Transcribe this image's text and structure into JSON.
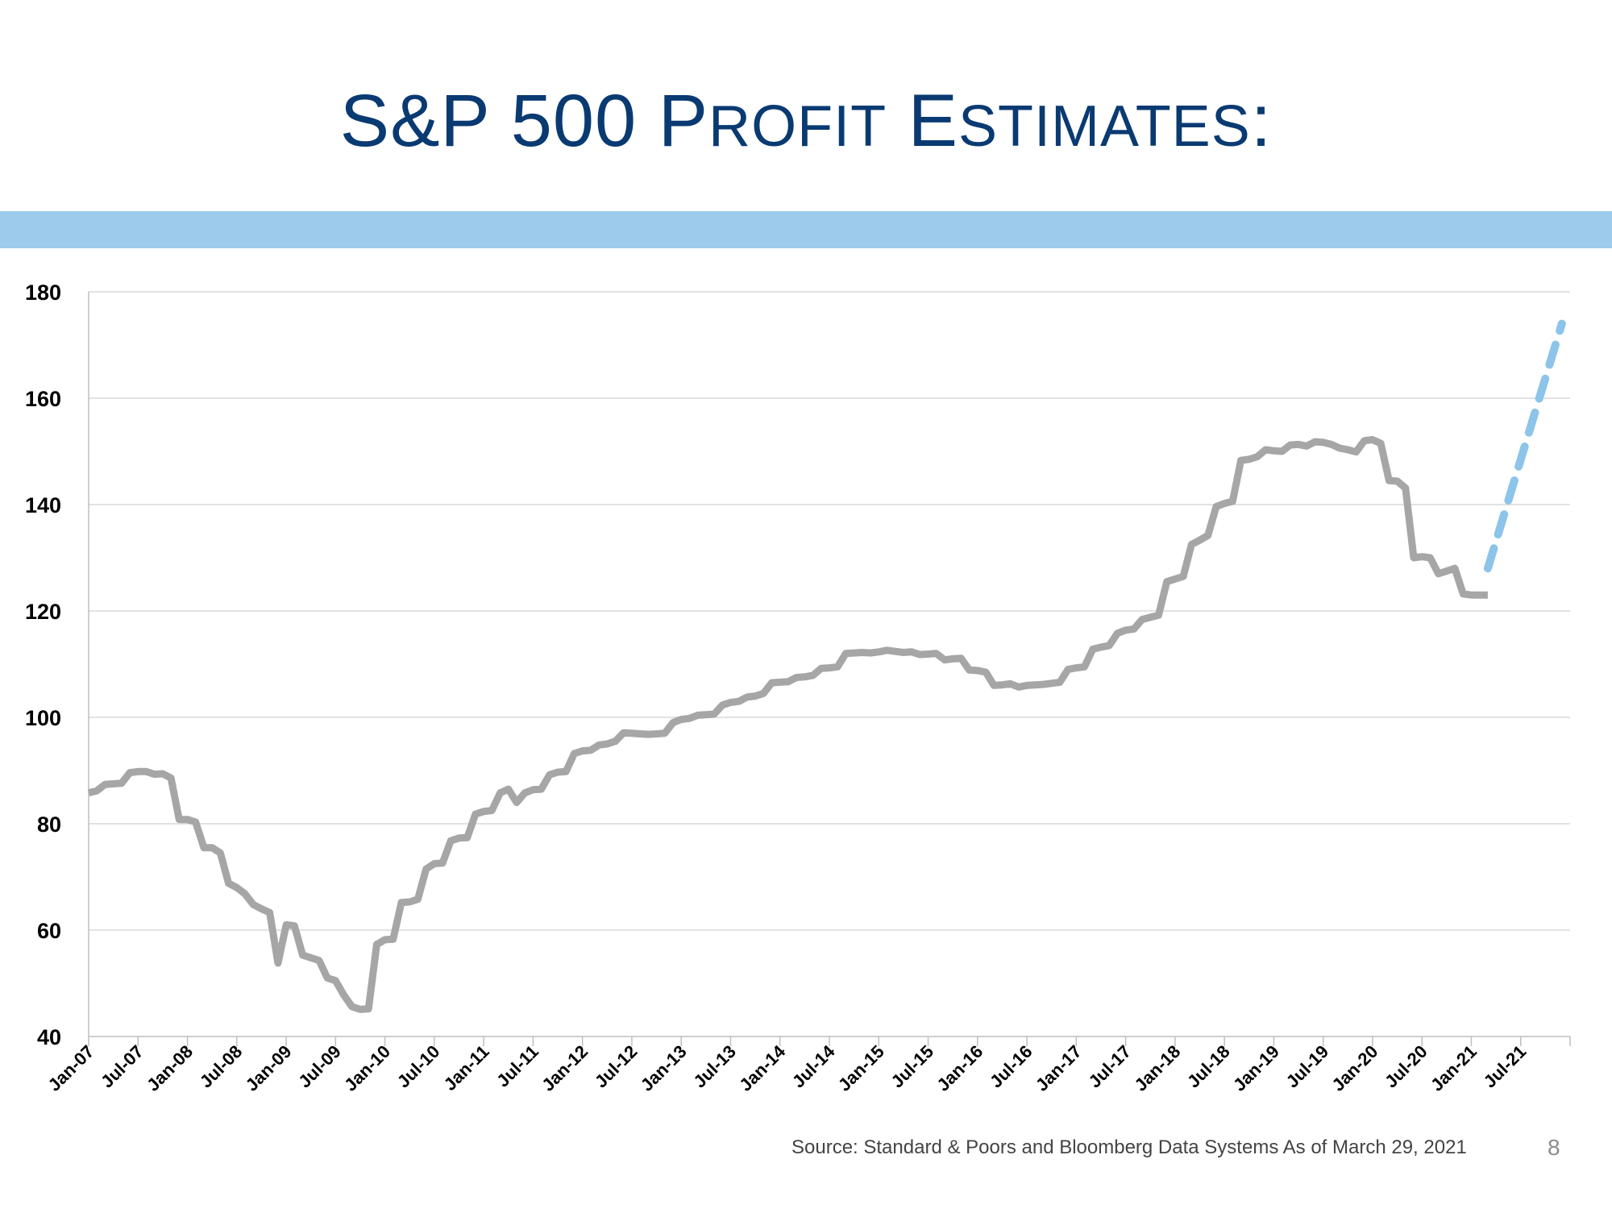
{
  "slide": {
    "title_lead": "S&P 500 P",
    "title_small_1": "ROFIT",
    "title_mid": " E",
    "title_small_2": "STIMATES",
    "title_tail": ":",
    "source": "Source:  Standard & Poors and Bloomberg Data Systems As of March 29, 2021",
    "page_number": "8"
  },
  "colors": {
    "title": "#0a3a72",
    "band": "#9ccbeb",
    "actual_line": "#a6a6a6",
    "estimate_line": "#8cc4ea",
    "grid": "#d9d9d9"
  },
  "chart_data": {
    "type": "line",
    "title": "",
    "xlabel": "",
    "ylabel": "",
    "ylim": [
      40,
      180
    ],
    "yticks": [
      40,
      60,
      80,
      100,
      120,
      140,
      160,
      180
    ],
    "x_range": [
      "Jan-07",
      "Jan-22"
    ],
    "x_tick_labels": [
      "Jan-07",
      "Jul-07",
      "Jan-08",
      "Jul-08",
      "Jan-09",
      "Jul-09",
      "Jan-10",
      "Jul-10",
      "Jan-11",
      "Jul-11",
      "Jan-12",
      "Jul-12",
      "Jan-13",
      "Jul-13",
      "Jan-14",
      "Jul-14",
      "Jan-15",
      "Jul-15",
      "Jan-16",
      "Jul-16",
      "Jan-17",
      "Jul-17",
      "Jan-18",
      "Jul-18",
      "Jan-19",
      "Jul-19",
      "Jan-20",
      "Jul-20",
      "Jan-21",
      "Jul-21"
    ],
    "grid": true,
    "legend": "none",
    "series": [
      {
        "style": "solid",
        "points": [
          [
            "Jan-07",
            85.8
          ],
          [
            "Feb-07",
            86.2
          ],
          [
            "Mar-07",
            87.4
          ],
          [
            "Apr-07",
            87.5
          ],
          [
            "May-07",
            87.6
          ],
          [
            "Jun-07",
            89.6
          ],
          [
            "Jul-07",
            89.8
          ],
          [
            "Aug-07",
            89.8
          ],
          [
            "Sep-07",
            89.3
          ],
          [
            "Oct-07",
            89.4
          ],
          [
            "Nov-07",
            88.6
          ],
          [
            "Dec-07",
            80.8
          ],
          [
            "Jan-08",
            80.8
          ],
          [
            "Feb-08",
            80.3
          ],
          [
            "Mar-08",
            75.5
          ],
          [
            "Apr-08",
            75.5
          ],
          [
            "May-08",
            74.5
          ],
          [
            "Jun-08",
            68.8
          ],
          [
            "Jul-08",
            68.0
          ],
          [
            "Aug-08",
            66.8
          ],
          [
            "Sep-08",
            64.8
          ],
          [
            "Oct-08",
            64.0
          ],
          [
            "Nov-08",
            63.3
          ],
          [
            "Dec-08",
            53.8
          ],
          [
            "Jan-09",
            61.0
          ],
          [
            "Feb-09",
            60.8
          ],
          [
            "Mar-09",
            55.3
          ],
          [
            "Apr-09",
            54.8
          ],
          [
            "May-09",
            54.3
          ],
          [
            "Jun-09",
            51.0
          ],
          [
            "Jul-09",
            50.5
          ],
          [
            "Aug-09",
            47.8
          ],
          [
            "Sep-09",
            45.6
          ],
          [
            "Oct-09",
            45.1
          ],
          [
            "Nov-09",
            45.2
          ],
          [
            "Dec-09",
            57.3
          ],
          [
            "Jan-10",
            58.2
          ],
          [
            "Feb-10",
            58.3
          ],
          [
            "Mar-10",
            65.2
          ],
          [
            "Apr-10",
            65.3
          ],
          [
            "May-10",
            65.8
          ],
          [
            "Jun-10",
            71.5
          ],
          [
            "Jul-10",
            72.5
          ],
          [
            "Aug-10",
            72.6
          ],
          [
            "Sep-10",
            76.8
          ],
          [
            "Oct-10",
            77.3
          ],
          [
            "Nov-10",
            77.4
          ],
          [
            "Dec-10",
            81.8
          ],
          [
            "Jan-11",
            82.3
          ],
          [
            "Feb-11",
            82.5
          ],
          [
            "Mar-11",
            85.8
          ],
          [
            "Apr-11",
            86.5
          ],
          [
            "May-11",
            84.0
          ],
          [
            "Jun-11",
            85.8
          ],
          [
            "Jul-11",
            86.4
          ],
          [
            "Aug-11",
            86.5
          ],
          [
            "Sep-11",
            89.2
          ],
          [
            "Oct-11",
            89.7
          ],
          [
            "Nov-11",
            89.8
          ],
          [
            "Dec-11",
            93.2
          ],
          [
            "Jan-12",
            93.7
          ],
          [
            "Feb-12",
            93.8
          ],
          [
            "Mar-12",
            94.8
          ],
          [
            "Apr-12",
            95.0
          ],
          [
            "May-12",
            95.5
          ],
          [
            "Jun-12",
            97.1
          ],
          [
            "Jul-12",
            97.0
          ],
          [
            "Aug-12",
            96.9
          ],
          [
            "Sep-12",
            96.8
          ],
          [
            "Oct-12",
            96.9
          ],
          [
            "Nov-12",
            97.0
          ],
          [
            "Dec-12",
            99.0
          ],
          [
            "Jan-13",
            99.6
          ],
          [
            "Feb-13",
            99.8
          ],
          [
            "Mar-13",
            100.4
          ],
          [
            "Apr-13",
            100.5
          ],
          [
            "May-13",
            100.6
          ],
          [
            "Jun-13",
            102.3
          ],
          [
            "Jul-13",
            102.8
          ],
          [
            "Aug-13",
            103.0
          ],
          [
            "Sep-13",
            103.8
          ],
          [
            "Oct-13",
            104.0
          ],
          [
            "Nov-13",
            104.5
          ],
          [
            "Dec-13",
            106.5
          ],
          [
            "Jan-14",
            106.6
          ],
          [
            "Feb-14",
            106.7
          ],
          [
            "Mar-14",
            107.5
          ],
          [
            "Apr-14",
            107.6
          ],
          [
            "May-14",
            107.9
          ],
          [
            "Jun-14",
            109.2
          ],
          [
            "Jul-14",
            109.3
          ],
          [
            "Aug-14",
            109.5
          ],
          [
            "Sep-14",
            112.0
          ],
          [
            "Oct-14",
            112.1
          ],
          [
            "Nov-14",
            112.2
          ],
          [
            "Dec-14",
            112.1
          ],
          [
            "Jan-15",
            112.3
          ],
          [
            "Feb-15",
            112.6
          ],
          [
            "Mar-15",
            112.4
          ],
          [
            "Apr-15",
            112.2
          ],
          [
            "May-15",
            112.3
          ],
          [
            "Jun-15",
            111.8
          ],
          [
            "Jul-15",
            111.9
          ],
          [
            "Aug-15",
            112.0
          ],
          [
            "Sep-15",
            110.8
          ],
          [
            "Oct-15",
            111.0
          ],
          [
            "Nov-15",
            111.1
          ],
          [
            "Dec-15",
            108.9
          ],
          [
            "Jan-16",
            108.8
          ],
          [
            "Feb-16",
            108.5
          ],
          [
            "Mar-16",
            106.0
          ],
          [
            "Apr-16",
            106.1
          ],
          [
            "May-16",
            106.3
          ],
          [
            "Jun-16",
            105.7
          ],
          [
            "Jul-16",
            106.0
          ],
          [
            "Aug-16",
            106.1
          ],
          [
            "Sep-16",
            106.2
          ],
          [
            "Oct-16",
            106.4
          ],
          [
            "Nov-16",
            106.6
          ],
          [
            "Dec-16",
            109.0
          ],
          [
            "Jan-17",
            109.3
          ],
          [
            "Feb-17",
            109.5
          ],
          [
            "Mar-17",
            112.8
          ],
          [
            "Apr-17",
            113.2
          ],
          [
            "May-17",
            113.5
          ],
          [
            "Jun-17",
            115.8
          ],
          [
            "Jul-17",
            116.4
          ],
          [
            "Aug-17",
            116.6
          ],
          [
            "Sep-17",
            118.4
          ],
          [
            "Oct-17",
            118.8
          ],
          [
            "Nov-17",
            119.2
          ],
          [
            "Dec-17",
            125.5
          ],
          [
            "Jan-18",
            126.0
          ],
          [
            "Feb-18",
            126.5
          ],
          [
            "Mar-18",
            132.5
          ],
          [
            "Apr-18",
            133.3
          ],
          [
            "May-18",
            134.2
          ],
          [
            "Jun-18",
            139.6
          ],
          [
            "Jul-18",
            140.2
          ],
          [
            "Aug-18",
            140.6
          ],
          [
            "Sep-18",
            148.3
          ],
          [
            "Oct-18",
            148.5
          ],
          [
            "Nov-18",
            149.0
          ],
          [
            "Dec-18",
            150.3
          ],
          [
            "Jan-19",
            150.1
          ],
          [
            "Feb-19",
            150.0
          ],
          [
            "Mar-19",
            151.2
          ],
          [
            "Apr-19",
            151.3
          ],
          [
            "May-19",
            151.0
          ],
          [
            "Jun-19",
            151.8
          ],
          [
            "Jul-19",
            151.7
          ],
          [
            "Aug-19",
            151.3
          ],
          [
            "Sep-19",
            150.6
          ],
          [
            "Oct-19",
            150.3
          ],
          [
            "Nov-19",
            149.9
          ],
          [
            "Dec-19",
            152.0
          ],
          [
            "Jan-20",
            152.2
          ],
          [
            "Feb-20",
            151.5
          ],
          [
            "Mar-20",
            144.5
          ],
          [
            "Apr-20",
            144.4
          ],
          [
            "May-20",
            143.1
          ],
          [
            "Jun-20",
            130.0
          ],
          [
            "Jul-20",
            130.2
          ],
          [
            "Aug-20",
            130.0
          ],
          [
            "Sep-20",
            127.0
          ],
          [
            "Oct-20",
            127.5
          ],
          [
            "Nov-20",
            128.0
          ],
          [
            "Dec-20",
            123.2
          ],
          [
            "Jan-21",
            123.0
          ],
          [
            "Feb-21",
            123.0
          ],
          [
            "Mar-21",
            123.0
          ]
        ]
      },
      {
        "style": "dashed",
        "points": [
          [
            "Mar-21",
            128.0
          ],
          [
            "Dec-21",
            174.0
          ]
        ]
      }
    ]
  }
}
